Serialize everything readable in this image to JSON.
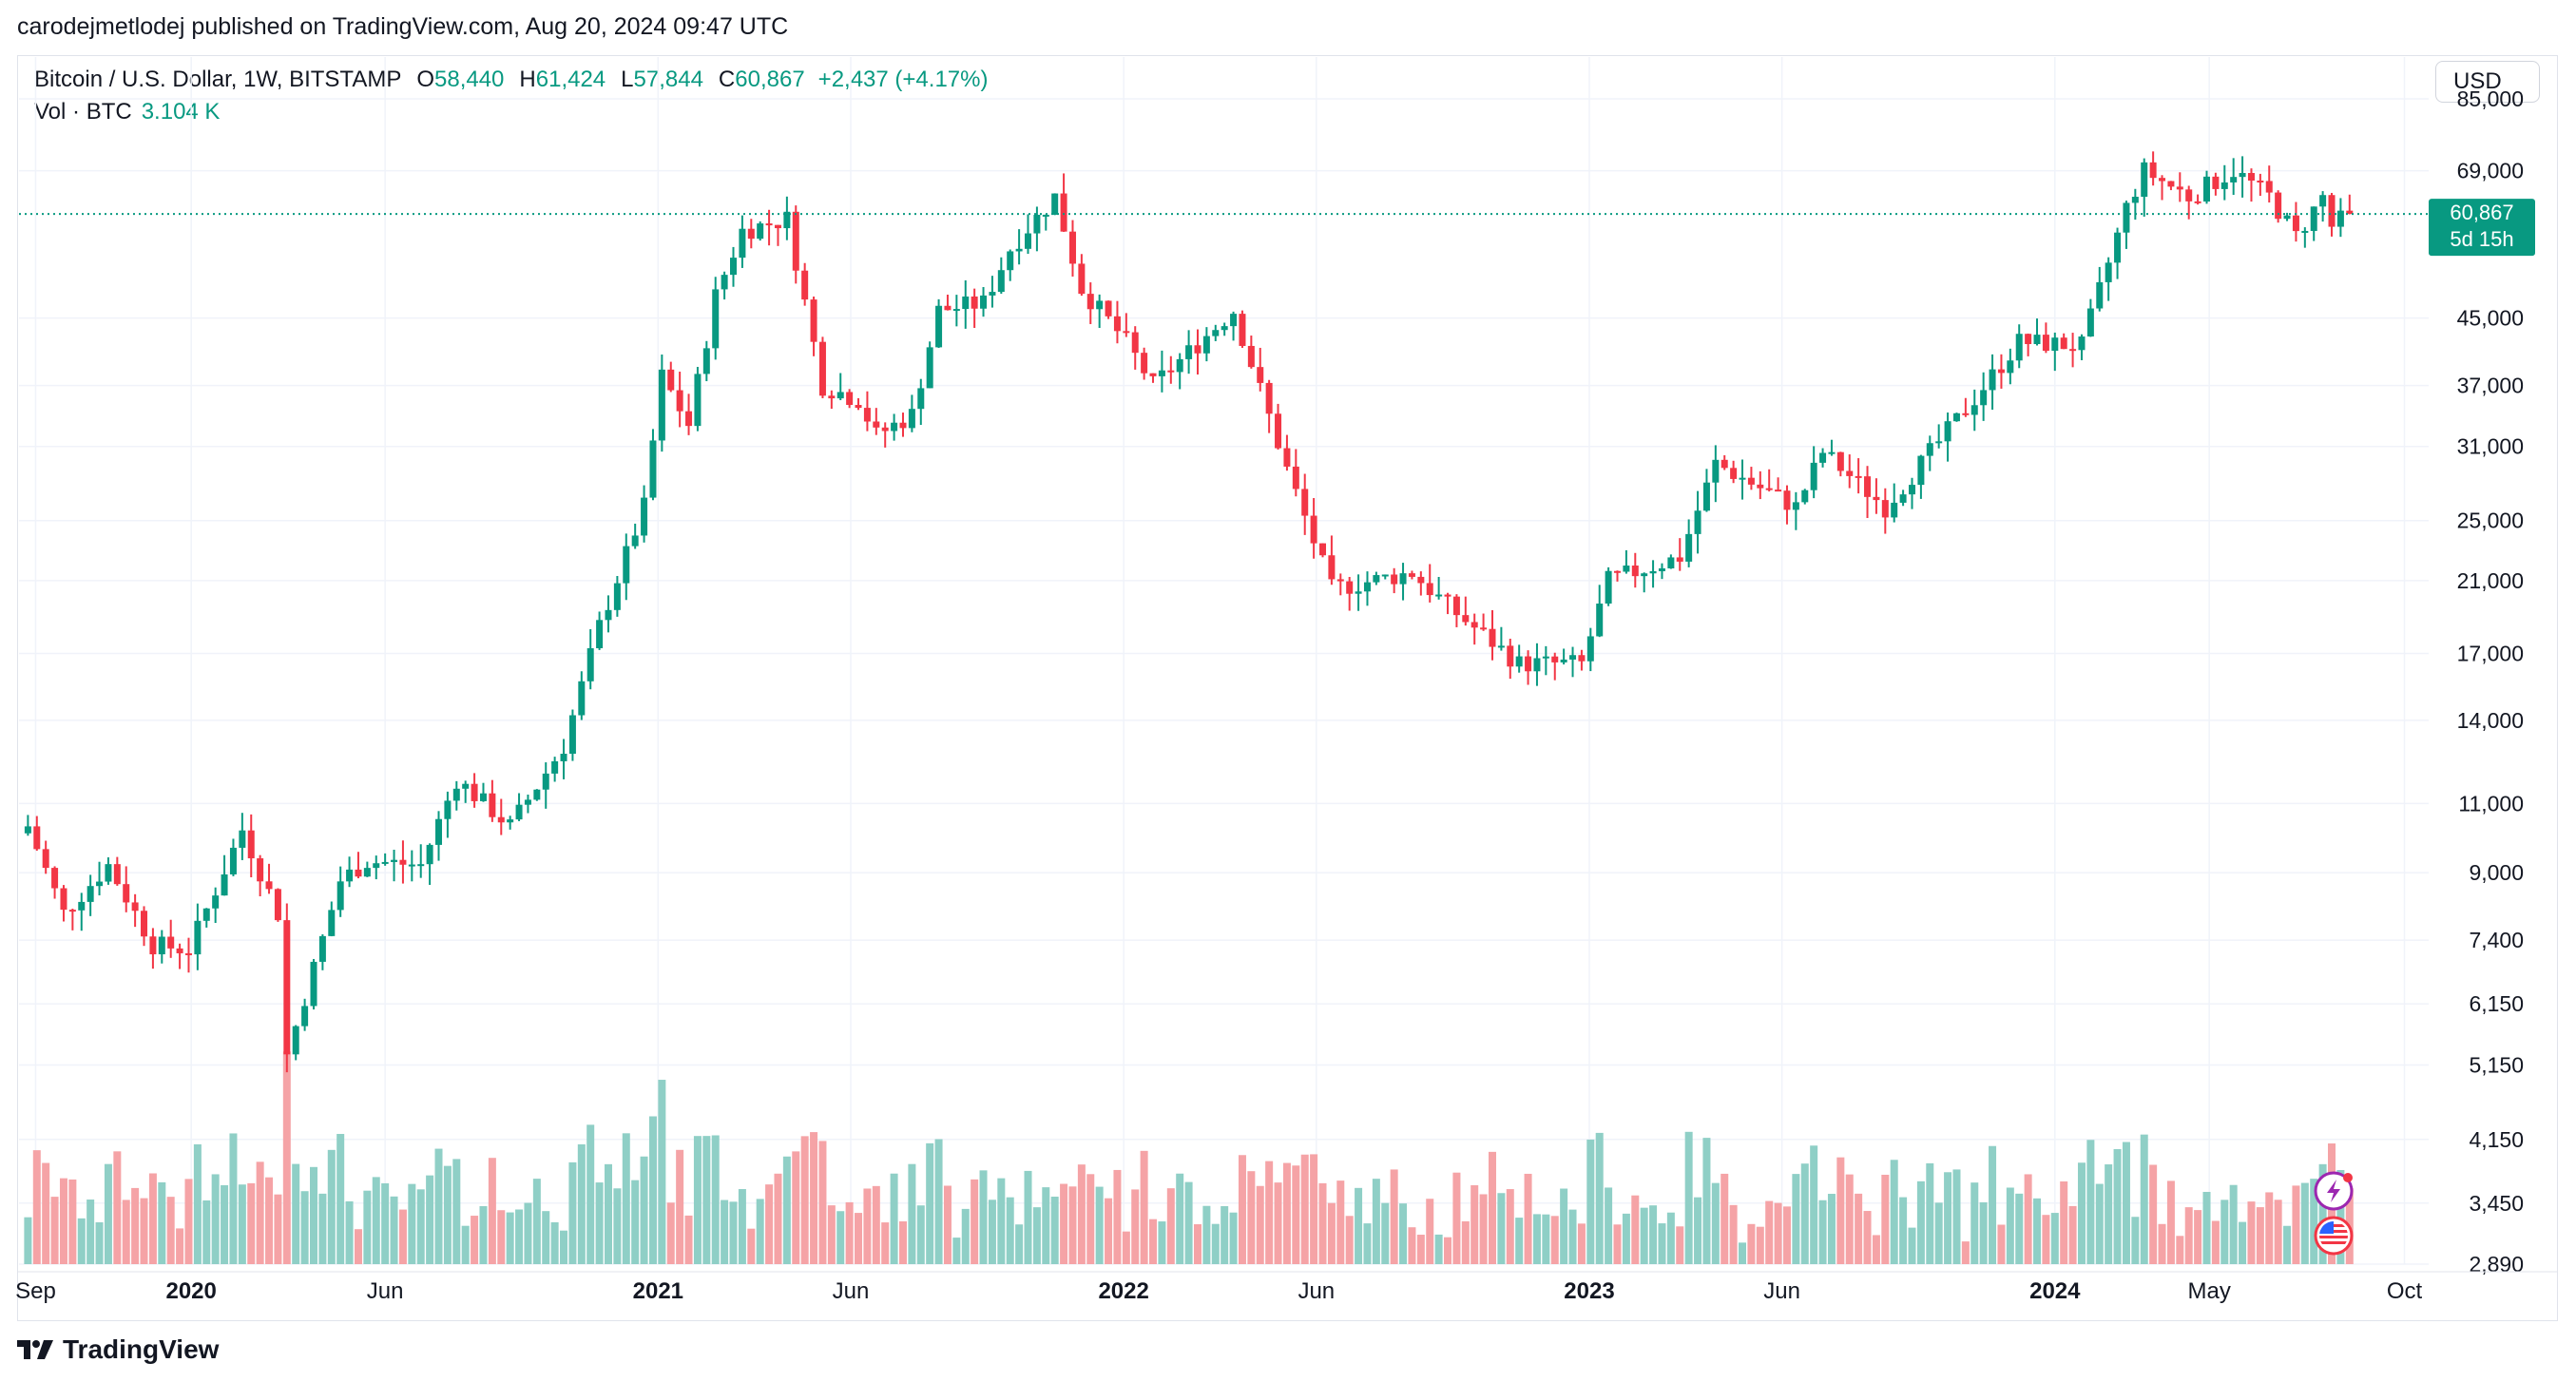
{
  "header": {
    "published": "carodejmetlodej published on TradingView.com, Aug 20, 2024 09:47 UTC"
  },
  "legend": {
    "symbol": "Bitcoin / U.S. Dollar, 1W, BITSTAMP",
    "open_label": "O",
    "open": "58,440",
    "high_label": "H",
    "high": "61,424",
    "low_label": "L",
    "low": "57,844",
    "close_label": "C",
    "close": "60,867",
    "change": "+2,437 (+4.17%)",
    "vol_label": "Vol · BTC",
    "vol_value": "3.104 K"
  },
  "currency_button": "USD",
  "price_badge": {
    "price": "60,867",
    "countdown": "5d 15h"
  },
  "footer": {
    "brand": "TradingView"
  },
  "colors": {
    "up": "#089981",
    "down": "#f23645",
    "up_vol": "#8fcfc6",
    "down_vol": "#f5a3a6",
    "badge": "#089981"
  },
  "icons": [
    "tradingview-logo-icon",
    "lightning-icon",
    "us-flag-icon"
  ],
  "chart_data": {
    "type": "candlestick",
    "title": "Bitcoin / U.S. Dollar, 1W, BITSTAMP",
    "y_scale": "log",
    "ylim": [
      2890,
      85000
    ],
    "grid": true,
    "current_price": 60867,
    "y_ticks": [
      "85,000",
      "69,000",
      "45,000",
      "37,000",
      "31,000",
      "25,000",
      "21,000",
      "17,000",
      "14,000",
      "11,000",
      "9,000",
      "7,400",
      "6,150",
      "5,150",
      "4,150",
      "3,450",
      "2,890"
    ],
    "y_tick_values": [
      85000,
      69000,
      45000,
      37000,
      31000,
      25000,
      21000,
      17000,
      14000,
      11000,
      9000,
      7400,
      6150,
      5150,
      4150,
      3450,
      2890
    ],
    "x_ticks": [
      "Sep",
      "2020",
      "Jun",
      "2021",
      "Jun",
      "2022",
      "Jun",
      "2023",
      "Jun",
      "2024",
      "May",
      "Oct"
    ],
    "x_tick_bold": [
      false,
      true,
      false,
      true,
      false,
      true,
      false,
      true,
      false,
      true,
      false,
      false
    ],
    "x_tick_dates": [
      "2019-09-01",
      "2020-01-01",
      "2020-06-01",
      "2021-01-01",
      "2021-06-01",
      "2022-01-01",
      "2022-06-01",
      "2023-01-01",
      "2023-06-01",
      "2024-01-01",
      "2024-05-01",
      "2024-10-01"
    ],
    "close_path": [
      [
        "2019-08-26",
        10300
      ],
      [
        "2019-09-23",
        8000
      ],
      [
        "2019-10-28",
        9200
      ],
      [
        "2019-12-02",
        7300
      ],
      [
        "2019-12-30",
        7200
      ],
      [
        "2020-02-10",
        10200
      ],
      [
        "2020-03-09",
        8000
      ],
      [
        "2020-03-16",
        5300
      ],
      [
        "2020-04-27",
        8800
      ],
      [
        "2020-05-18",
        9300
      ],
      [
        "2020-06-29",
        9200
      ],
      [
        "2020-07-27",
        11800
      ],
      [
        "2020-09-07",
        10300
      ],
      [
        "2020-10-19",
        13000
      ],
      [
        "2020-11-16",
        18400
      ],
      [
        "2020-12-21",
        26000
      ],
      [
        "2021-01-04",
        38000
      ],
      [
        "2021-01-25",
        33000
      ],
      [
        "2021-02-15",
        48000
      ],
      [
        "2021-03-08",
        58000
      ],
      [
        "2021-04-12",
        60000
      ],
      [
        "2021-05-10",
        37000
      ],
      [
        "2021-06-07",
        35500
      ],
      [
        "2021-06-21",
        32000
      ],
      [
        "2021-07-19",
        34000
      ],
      [
        "2021-08-09",
        46000
      ],
      [
        "2021-09-13",
        47000
      ],
      [
        "2021-10-04",
        55000
      ],
      [
        "2021-11-08",
        64000
      ],
      [
        "2021-11-29",
        49000
      ],
      [
        "2022-01-03",
        42000
      ],
      [
        "2022-01-24",
        37000
      ],
      [
        "2022-03-28",
        46000
      ],
      [
        "2022-05-09",
        29000
      ],
      [
        "2022-06-13",
        20500
      ],
      [
        "2022-08-15",
        21500
      ],
      [
        "2022-09-12",
        19500
      ],
      [
        "2022-11-07",
        16500
      ],
      [
        "2022-12-26",
        16500
      ],
      [
        "2023-01-16",
        21000
      ],
      [
        "2023-03-13",
        22500
      ],
      [
        "2023-04-10",
        29500
      ],
      [
        "2023-06-12",
        26000
      ],
      [
        "2023-07-03",
        30500
      ],
      [
        "2023-08-21",
        26000
      ],
      [
        "2023-10-23",
        34500
      ],
      [
        "2023-12-04",
        42000
      ],
      [
        "2024-01-22",
        41500
      ],
      [
        "2024-02-26",
        62000
      ],
      [
        "2024-03-11",
        69000
      ],
      [
        "2024-04-15",
        64000
      ],
      [
        "2024-05-20",
        69000
      ],
      [
        "2024-06-17",
        64000
      ],
      [
        "2024-07-08",
        57000
      ],
      [
        "2024-07-29",
        64000
      ],
      [
        "2024-08-05",
        58700
      ],
      [
        "2024-08-19",
        60867
      ]
    ],
    "volume_scale_label": "Vol · BTC"
  }
}
